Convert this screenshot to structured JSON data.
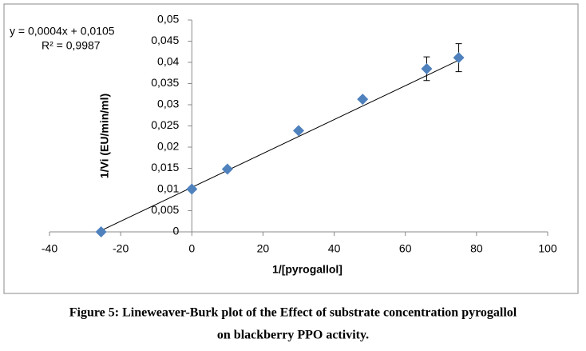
{
  "chart_data": {
    "type": "scatter",
    "x": [
      -25.5,
      0,
      10,
      30,
      48,
      66,
      75
    ],
    "values": [
      0,
      0.0101,
      0.0148,
      0.0239,
      0.0313,
      0.0385,
      0.0411
    ],
    "errors": [
      null,
      null,
      null,
      null,
      null,
      0.0028,
      0.0033
    ],
    "color": "#4f81bd",
    "xlim": [
      -40,
      100
    ],
    "xticks": [
      -40,
      -20,
      0,
      20,
      40,
      60,
      80,
      100
    ],
    "ylim": [
      0,
      0.05
    ],
    "yticks": [
      0,
      {
        "value": 0.005,
        "label": "0,005"
      },
      {
        "value": 0.01,
        "label": "0,01"
      },
      {
        "value": 0.015,
        "label": "0,015"
      },
      {
        "value": 0.02,
        "label": "0,02"
      },
      {
        "value": 0.025,
        "label": "0,025"
      },
      {
        "value": 0.03,
        "label": "0,03"
      },
      {
        "value": 0.035,
        "label": "0,035"
      },
      {
        "value": 0.04,
        "label": "0,04"
      },
      {
        "value": 0.045,
        "label": "0,045"
      },
      {
        "value": 0.05,
        "label": "0,05"
      }
    ],
    "x_label": "1/[pyrogallol]",
    "y_label": "1/Vi (EU/min/ml)",
    "trendline": {
      "slope": 0.0004,
      "intercept": 0.0105,
      "equation": "y = 0,0004x + 0,0105",
      "r2": "R² = 0,9987"
    },
    "caption": [
      "Figure 5: Lineweaver-Burk plot of the Effect of substrate concentration pyrogallol",
      "on blackberry PPO activity."
    ]
  }
}
